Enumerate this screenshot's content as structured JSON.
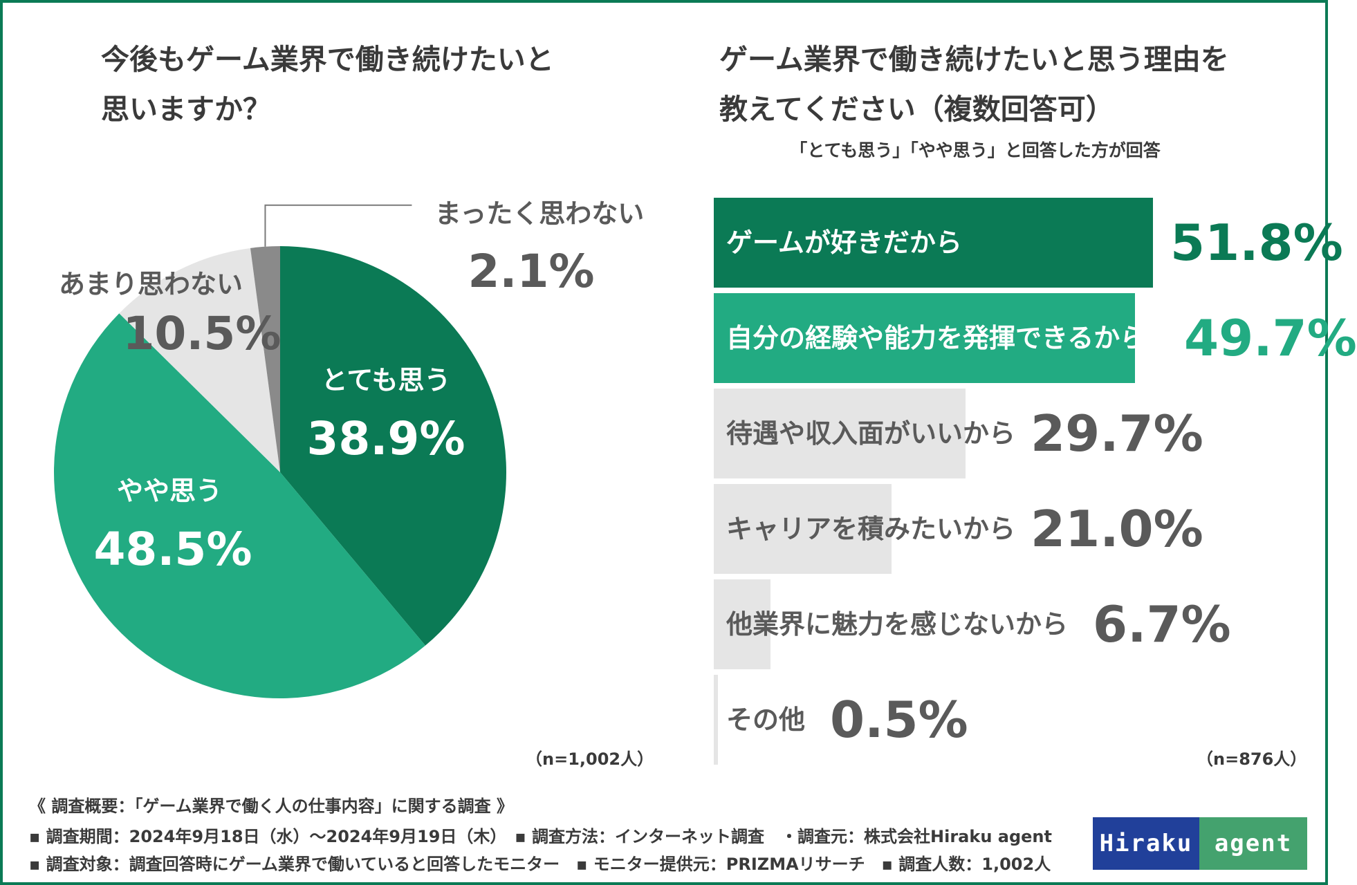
{
  "left_title": "今後もゲーム業界で働き続けたいと\n思いますか？",
  "right_title": "ゲーム業界で働き続けたいと思う理由を\n教えてください（複数回答可）",
  "right_subtitle": "「とても思う」「やや思う」と回答した方が回答",
  "colors": {
    "dark_green": "#0b7a55",
    "mid_green": "#22ab82",
    "light_gray": "#e5e5e5",
    "dark_gray": "#8a8a8a",
    "text_gray": "#5a5a5a",
    "logo_blue": "#21409a",
    "logo_green": "#44a26e"
  },
  "chart_data": [
    {
      "type": "pie",
      "title": "今後もゲーム業界で働き続けたいと思いますか？",
      "slices": [
        {
          "label": "とても思う",
          "value": 38.9,
          "display": "38.9%"
        },
        {
          "label": "やや思う",
          "value": 48.5,
          "display": "48.5%"
        },
        {
          "label": "あまり思わない",
          "value": 10.5,
          "display": "10.5%"
        },
        {
          "label": "まったく思わない",
          "value": 2.1,
          "display": "2.1%"
        }
      ],
      "n": "（n=1,002人）"
    },
    {
      "type": "bar",
      "orientation": "horizontal",
      "title": "ゲーム業界で働き続けたいと思う理由を教えてください（複数回答可）",
      "categories": [
        "ゲームが好きだから",
        "自分の経験や能力を発揮できるから",
        "待遇や収入面がいいから",
        "キャリアを積みたいから",
        "他業界に魅力を感じないから",
        "その他"
      ],
      "values": [
        51.8,
        49.7,
        29.7,
        21.0,
        6.7,
        0.5
      ],
      "value_labels": [
        "51.8%",
        "49.7%",
        "29.7%",
        "21.0%",
        "6.7%",
        "0.5%"
      ],
      "xlim": [
        0,
        60
      ],
      "n": "（n=876人）"
    }
  ],
  "footer": {
    "summary": "《 調査概要：「ゲーム業界で働く人の仕事内容」に関する調査 》",
    "line1": "▪ 調査期間：2024年9月18日（水）～2024年9月19日（木）　▪ 調査方法：インターネット調査　・調査元：株式会社Hiraku agent",
    "line2": "▪ 調査対象：調査回答時にゲーム業界で働いていると回答したモニター　▪ モニター提供元：PRIZMAリサーチ　▪ 調査人数：1,002人"
  },
  "logo": {
    "left": "Hiraku",
    "right": "agent"
  }
}
